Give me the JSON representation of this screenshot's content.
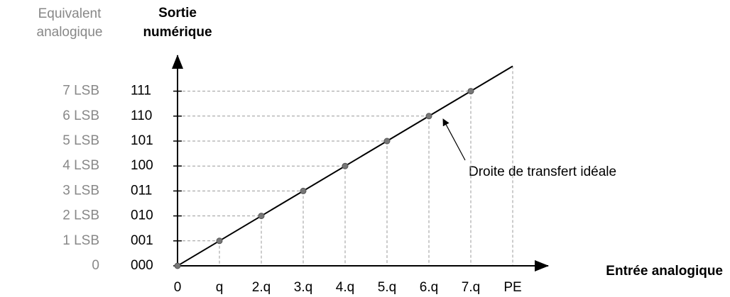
{
  "left_header": [
    "Equivalent",
    "analogique"
  ],
  "y_axis_title": [
    "Sortie",
    "numérique"
  ],
  "levels": [
    {
      "code": "000",
      "equivalent": "0"
    },
    {
      "code": "001",
      "equivalent": "1 LSB"
    },
    {
      "code": "010",
      "equivalent": "2 LSB"
    },
    {
      "code": "011",
      "equivalent": "3 LSB"
    },
    {
      "code": "100",
      "equivalent": "4 LSB"
    },
    {
      "code": "101",
      "equivalent": "5 LSB"
    },
    {
      "code": "110",
      "equivalent": "6 LSB"
    },
    {
      "code": "111",
      "equivalent": "7 LSB"
    }
  ],
  "x_labels": [
    "0",
    "q",
    "2.q",
    "3.q",
    "4.q",
    "5.q",
    "6.q",
    "7.q",
    "PE"
  ],
  "x_axis_title": "Entrée analogique",
  "annotation": "Droite de transfert idéale"
}
